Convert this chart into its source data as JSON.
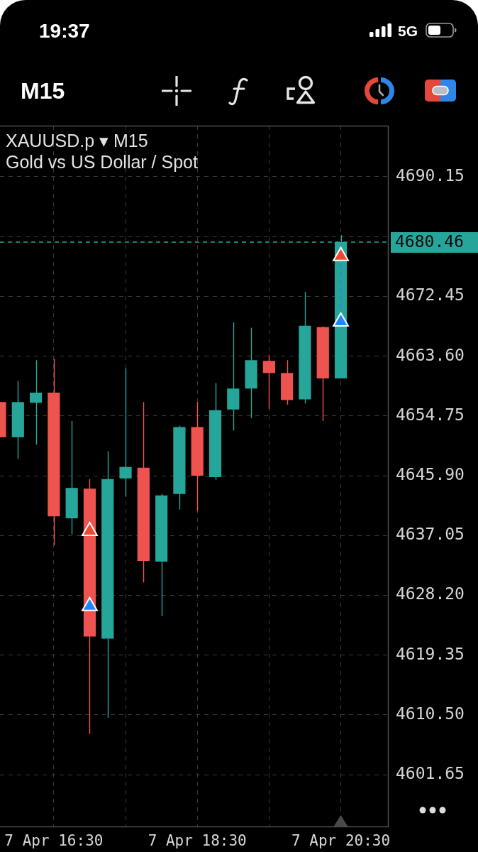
{
  "chart_data": {
    "type": "candlestick",
    "title": "XAUUSD.p ▾ M15",
    "subtitle": "Gold vs US Dollar / Spot",
    "annotations": [
      "19:37",
      "5G",
      "M15"
    ],
    "x": [
      "--04-07T15:45",
      "--04-07T16:00",
      "--04-07T16:15",
      "--04-07T16:30",
      "--04-07T16:45",
      "--04-07T17:00",
      "--04-07T17:15",
      "--04-07T17:30",
      "--04-07T17:45",
      "--04-07T18:00",
      "--04-07T18:15",
      "--04-07T18:30",
      "--04-07T18:45",
      "--04-07T19:00",
      "--04-07T19:15",
      "--04-07T19:30",
      "--04-07T19:45",
      "--04-07T20:00",
      "--04-07T20:15",
      "--04-07T20:30"
    ],
    "ohlc": [
      [
        4656.8,
        4656.8,
        4651.6,
        4651.6
      ],
      [
        4651.6,
        4659.9,
        4648.4,
        4656.8
      ],
      [
        4656.7,
        4663.0,
        4650.5,
        4658.2
      ],
      [
        4658.2,
        4663.2,
        4635.6,
        4639.9
      ],
      [
        4639.6,
        4654.0,
        4637.2,
        4644.1
      ],
      [
        4644.0,
        4645.4,
        4607.7,
        4622.1
      ],
      [
        4621.8,
        4649.5,
        4610.1,
        4645.4
      ],
      [
        4645.5,
        4661.8,
        4642.8,
        4647.2
      ],
      [
        4647.1,
        4656.8,
        4630.1,
        4633.3
      ],
      [
        4633.2,
        4643.2,
        4625.1,
        4643.0
      ],
      [
        4643.2,
        4653.3,
        4640.9,
        4653.1
      ],
      [
        4653.1,
        4656.8,
        4640.7,
        4645.9
      ],
      [
        4645.7,
        4659.6,
        4645.3,
        4655.6
      ],
      [
        4655.7,
        4668.6,
        4652.6,
        4658.8
      ],
      [
        4658.8,
        4667.8,
        4654.4,
        4663.0
      ],
      [
        4662.9,
        4663.8,
        4655.8,
        4661.1
      ],
      [
        4661.1,
        4663.0,
        4656.4,
        4657.1
      ],
      [
        4657.2,
        4673.1,
        4656.6,
        4668.1
      ],
      [
        4667.9,
        4668.0,
        4654.0,
        4660.3
      ],
      [
        4660.3,
        4681.5,
        4660.3,
        4680.46
      ]
    ],
    "colors": [
      "#ef5350",
      "#26a69a",
      "#26a69a",
      "#ef5350",
      "#26a69a",
      "#ef5350",
      "#26a69a",
      "#26a69a",
      "#ef5350",
      "#26a69a",
      "#26a69a",
      "#ef5350",
      "#26a69a",
      "#26a69a",
      "#26a69a",
      "#ef5350",
      "#ef5350",
      "#26a69a",
      "#ef5350",
      "#26a69a"
    ],
    "series": [
      {
        "type": "scatter",
        "color": "#f2472e",
        "marker": "triangle",
        "x": [
          "--04-07T17:00",
          "--04-07T20:30"
        ],
        "values": [
          4637.7,
          4678.4
        ]
      },
      {
        "type": "scatter",
        "color": "#1e88ff",
        "marker": "triangle",
        "x": [
          "--04-07T17:00",
          "--04-07T20:30"
        ],
        "values": [
          4626.6,
          4668.7
        ]
      },
      {
        "type": "line",
        "color": "#2f7fe6",
        "line_style": "dashed",
        "marker": "none",
        "x": [
          "--04-07T20:30",
          "--04-07T20:30"
        ],
        "values": [
          4677.2,
          4669.9
        ]
      }
    ],
    "xlim": [
      "--04-07T15:45",
      "--04-07T21:10"
    ],
    "xticks": [
      {
        "value": "--04-07T16:30",
        "label": "7 Apr 16:30"
      },
      {
        "value": "--04-07T17:30",
        "label": null
      },
      {
        "value": "--04-07T18:30",
        "label": "7 Apr 18:30"
      },
      {
        "value": "--04-07T19:30",
        "label": null
      },
      {
        "value": "--04-07T20:30",
        "label": "7 Apr 20:30"
      }
    ],
    "ylim": [
      4593.9,
      4697.7
    ],
    "yticks": [
      4690.15,
      {
        "value": 4681.3,
        "label": null
      },
      4672.45,
      {
        "value": 4663.6,
        "label": "4663.60"
      },
      4654.75,
      {
        "value": 4645.9,
        "label": "4645.90"
      },
      4637.05,
      {
        "value": 4628.2,
        "label": "4628.20"
      },
      4619.35,
      {
        "value": 4610.5,
        "label": "4610.50"
      },
      4601.65
    ],
    "grid": true,
    "ref_lines": [
      {
        "axis": "y",
        "value": 4680.46,
        "label": "4680.46",
        "color": "#26a69a",
        "line_style": "dashed"
      }
    ]
  }
}
